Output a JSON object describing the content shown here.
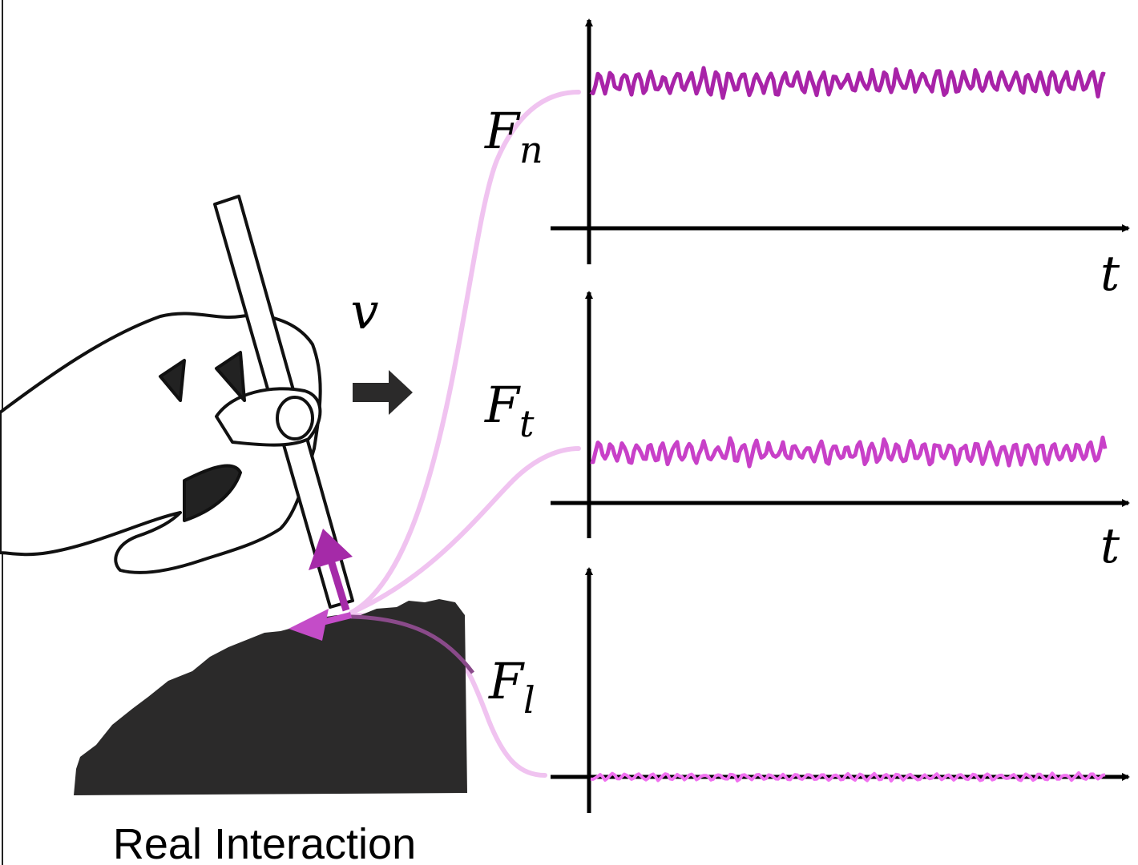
{
  "velocity_label": "v",
  "plots": [
    {
      "label": {
        "symbol": "F",
        "subscript": "n"
      },
      "time_label": "t"
    },
    {
      "label": {
        "symbol": "F",
        "subscript": "t"
      },
      "time_label": "t"
    },
    {
      "label": {
        "symbol": "F",
        "subscript": "l"
      }
    }
  ],
  "caption": "Real Interaction"
}
